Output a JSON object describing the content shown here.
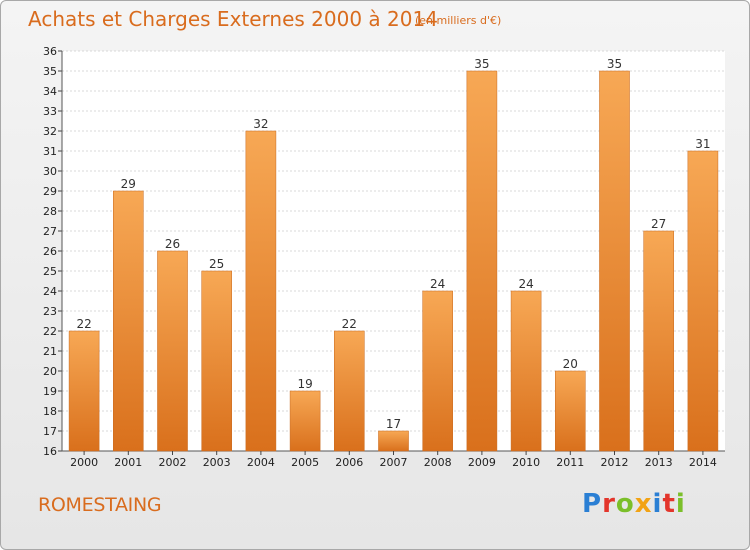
{
  "header": {
    "title": "Achats et Charges Externes 2000 à 2014",
    "subtitle": "(en milliers d'€)"
  },
  "footer": {
    "place": "ROMESTAING",
    "logo_letters": [
      {
        "ch": "P",
        "color": "#2a7fd4"
      },
      {
        "ch": "r",
        "color": "#e3352b"
      },
      {
        "ch": "o",
        "color": "#7bbf2a"
      },
      {
        "ch": "x",
        "color": "#f2a314"
      },
      {
        "ch": "i",
        "color": "#2a7fd4"
      },
      {
        "ch": "t",
        "color": "#e3352b"
      },
      {
        "ch": "i",
        "color": "#7bbf2a"
      }
    ]
  },
  "chart_data": {
    "type": "bar",
    "title": "Achats et Charges Externes 2000 à 2014",
    "subtitle": "(en milliers d'€)",
    "categories": [
      "2000",
      "2001",
      "2002",
      "2003",
      "2004",
      "2005",
      "2006",
      "2007",
      "2008",
      "2009",
      "2010",
      "2011",
      "2012",
      "2013",
      "2014"
    ],
    "values": [
      22,
      29,
      26,
      25,
      32,
      19,
      22,
      17,
      24,
      35,
      24,
      20,
      35,
      27,
      31
    ],
    "ylim": [
      16,
      36
    ],
    "ytick_step": 1,
    "grid": true,
    "bar_color_top": "#f7a855",
    "bar_color_bottom": "#d9701c",
    "xlabel": "",
    "ylabel": ""
  }
}
